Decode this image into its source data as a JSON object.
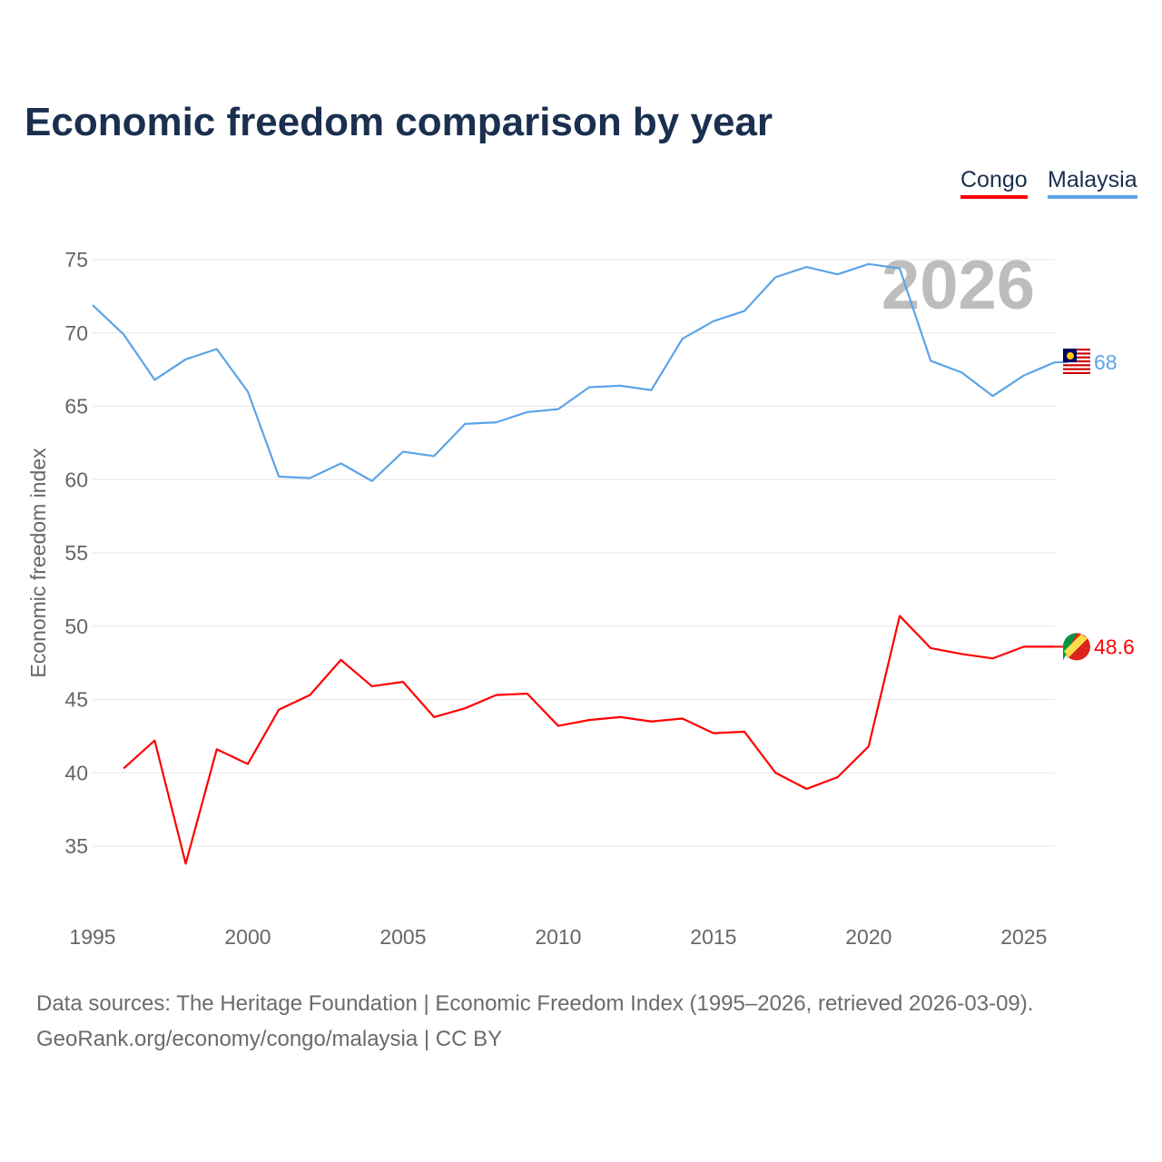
{
  "title": "Economic freedom comparison by year",
  "footer": {
    "line1": "Data sources: The Heritage Foundation | Economic Freedom Index (1995–2026, retrieved 2026-03-09).",
    "line2": "GeoRank.org/economy/congo/malaysia | CC BY"
  },
  "chart_data": {
    "type": "line",
    "title": "Economic freedom comparison by year",
    "xlabel": "",
    "ylabel": "Economic freedom index",
    "xlim": [
      1995,
      2026
    ],
    "ylim": [
      31,
      77
    ],
    "yticks": [
      35,
      40,
      45,
      50,
      55,
      60,
      65,
      70,
      75
    ],
    "xticks": [
      1995,
      2000,
      2005,
      2010,
      2015,
      2020,
      2025
    ],
    "grid": true,
    "legend_position": "top-right",
    "watermark_year": "2026",
    "series": [
      {
        "name": "Congo",
        "color": "#ff0000",
        "end_label": "48.6",
        "x": [
          1996,
          1997,
          1998,
          1999,
          2000,
          2001,
          2002,
          2003,
          2004,
          2005,
          2006,
          2007,
          2008,
          2009,
          2010,
          2011,
          2012,
          2013,
          2014,
          2015,
          2016,
          2017,
          2018,
          2019,
          2020,
          2021,
          2022,
          2023,
          2024,
          2025,
          2026
        ],
        "values": [
          40.3,
          42.2,
          33.8,
          41.6,
          40.6,
          44.3,
          45.3,
          47.7,
          45.9,
          46.2,
          43.8,
          44.4,
          45.3,
          45.4,
          43.2,
          43.6,
          43.8,
          43.5,
          43.7,
          42.7,
          42.8,
          40.0,
          38.9,
          39.7,
          41.8,
          50.7,
          48.5,
          48.1,
          47.8,
          48.6,
          48.6
        ]
      },
      {
        "name": "Malaysia",
        "color": "#5ba4e8",
        "end_label": "68",
        "x": [
          1995,
          1996,
          1997,
          1998,
          1999,
          2000,
          2001,
          2002,
          2003,
          2004,
          2005,
          2006,
          2007,
          2008,
          2009,
          2010,
          2011,
          2012,
          2013,
          2014,
          2015,
          2016,
          2017,
          2018,
          2019,
          2020,
          2021,
          2022,
          2023,
          2024,
          2025,
          2026
        ],
        "values": [
          71.9,
          69.9,
          66.8,
          68.2,
          68.9,
          66.0,
          60.2,
          60.1,
          61.1,
          59.9,
          61.9,
          61.6,
          63.8,
          63.9,
          64.6,
          64.8,
          66.3,
          66.4,
          66.1,
          69.6,
          70.8,
          71.5,
          73.8,
          74.5,
          74.0,
          74.7,
          74.4,
          68.1,
          67.3,
          65.7,
          67.1,
          68.0
        ]
      }
    ]
  }
}
